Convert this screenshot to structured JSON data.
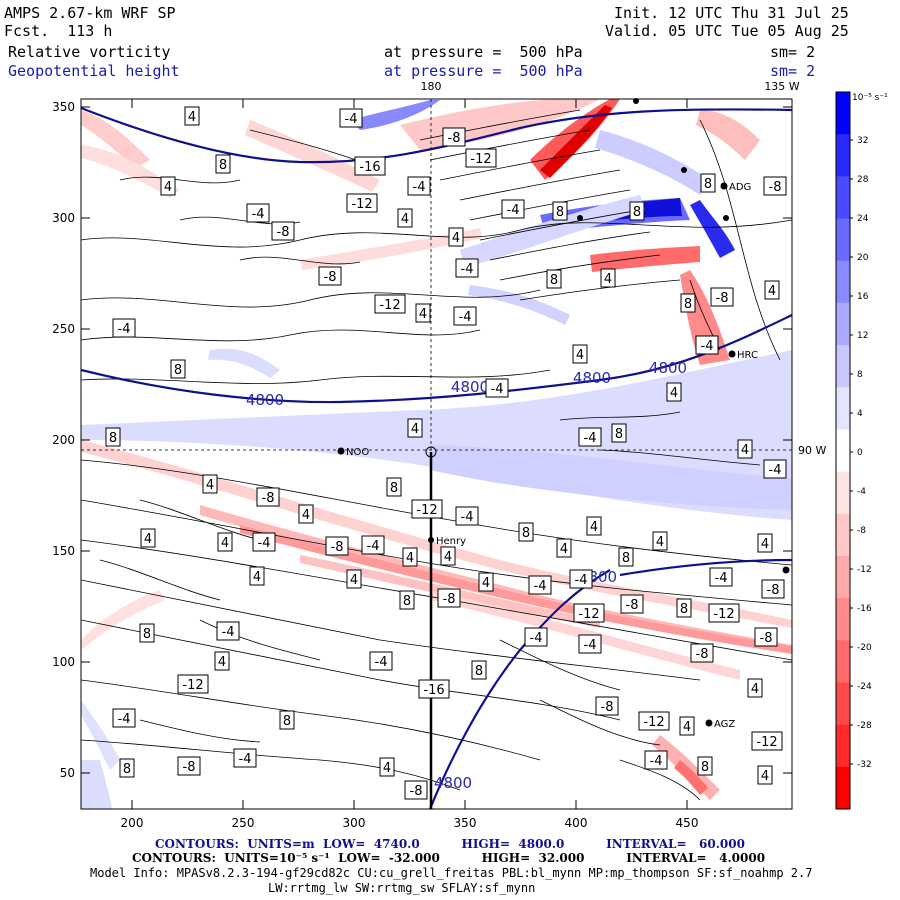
{
  "header": {
    "model": "AMPS 2.67-km WRF SP",
    "fcst": "Fcst.  113 h",
    "init": "Init. 12 UTC Thu 31 Jul 25",
    "valid": "Valid. 05 UTC Tue 05 Aug 25",
    "field1": "Relative vorticity",
    "field2": "Geopotential height",
    "pressure1": "at pressure =  500 hPa",
    "pressure2": "at pressure =  500 hPa",
    "sm1": "sm= 2",
    "sm2": "sm= 2"
  },
  "map": {
    "lon_top_180": "180",
    "lon_top_135w": "135 W",
    "lon_right_90w": "90 W",
    "x_ticks": [
      "200",
      "250",
      "300",
      "350",
      "400",
      "450"
    ],
    "y_ticks": [
      "350",
      "300",
      "250",
      "200",
      "150",
      "100",
      "50"
    ],
    "stations": [
      {
        "name": "Henry"
      },
      {
        "name": "NOO"
      },
      {
        "name": "HRC"
      },
      {
        "name": "AGZ"
      },
      {
        "name": "ADG"
      }
    ],
    "height_labels": [
      "4800",
      "4800",
      "4800",
      "4800",
      "4800",
      "4800"
    ],
    "vort_labels": [
      "4",
      "-4",
      "8",
      "-8",
      "-12",
      "-16",
      "4",
      "-4",
      "8",
      "-8",
      "-12",
      "4",
      "-4",
      "8",
      "-8",
      "4",
      "-4",
      "8",
      "-8",
      "-12",
      "4",
      "-4",
      "8",
      "4",
      "-4",
      "8",
      "-8",
      "4",
      "-4",
      "8",
      "4",
      "-4",
      "4",
      "-4",
      "8",
      "4",
      "-4",
      "8",
      "4",
      "-4",
      "4",
      "8",
      "-8",
      "-12",
      "4",
      "-4",
      "8",
      "4",
      "4",
      "4",
      "4",
      "4",
      "-4",
      "-8",
      "-4",
      "4",
      "4",
      "4",
      "8",
      "4",
      "4",
      "4",
      "-4",
      "-4",
      "-4",
      "-8",
      "8",
      "-8",
      "-12",
      "-8",
      "8",
      "-12",
      "-8",
      "8",
      "-4",
      "-4",
      "-4"
    ]
  },
  "colorbar": {
    "unit": "10⁻⁵ s⁻¹",
    "labels": [
      "32",
      "28",
      "24",
      "20",
      "16",
      "12",
      "8",
      "4",
      "0",
      "-4",
      "-8",
      "-12",
      "-16",
      "-20",
      "-24",
      "-28",
      "-32"
    ],
    "colors": [
      "#0000ff",
      "#2a2aff",
      "#4a4aff",
      "#6a6aff",
      "#8a8aff",
      "#aaaaff",
      "#c8c8ff",
      "#e4e4ff",
      "#ffffff",
      "#ffe4e4",
      "#ffc8c8",
      "#ffaaaa",
      "#ff8a8a",
      "#ff6a6a",
      "#ff4a4a",
      "#ff2a2a",
      "#ff0000"
    ]
  },
  "footer": {
    "line1": "CONTOURS:  UNITS=m  LOW=  4740.0          HIGH=  4800.0          INTERVAL=   60.000",
    "line2": "CONTOURS:  UNITS=10⁻⁵ s⁻¹  LOW=  -32.000          HIGH=  32.000          INTERVAL=   4.0000",
    "line3": "Model Info: MPASv8.2.3-194-gf29cd82c CU:cu_grell_freitas PBL:bl_mynn MP:mp_thompson SF:sf_noahmp 2.7",
    "line4": "LW:rrtmg_lw SW:rrtmg_sw SFLAY:sf_mynn"
  }
}
